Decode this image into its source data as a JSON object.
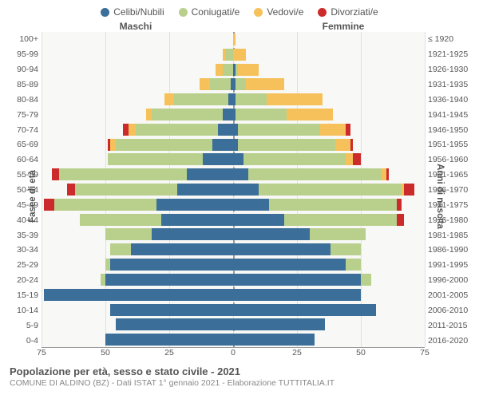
{
  "legend": {
    "items": [
      {
        "label": "Celibi/Nubili",
        "color": "#3b6e99"
      },
      {
        "label": "Coniugati/e",
        "color": "#b8d08c"
      },
      {
        "label": "Vedovi/e",
        "color": "#f6c15a"
      },
      {
        "label": "Divorziati/e",
        "color": "#cc2b2b"
      }
    ]
  },
  "headers": {
    "male": "Maschi",
    "female": "Femmine"
  },
  "axis_titles": {
    "left": "Fasce di età",
    "right": "Anni di nascita"
  },
  "chart": {
    "type": "population-pyramid",
    "background_color": "#f8f8f6",
    "grid_color": "#e0e0dc",
    "center_line_color": "#999",
    "colors": {
      "single": "#3b6e99",
      "married": "#b8d08c",
      "widowed": "#f6c15a",
      "divorced": "#cc2b2b"
    },
    "xmax": 75,
    "xticks": [
      -75,
      -50,
      -25,
      0,
      25,
      50,
      75
    ],
    "xtick_labels": [
      "75",
      "50",
      "25",
      "0",
      "25",
      "50",
      "75"
    ],
    "age_labels": [
      "100+",
      "95-99",
      "90-94",
      "85-89",
      "80-84",
      "75-79",
      "70-74",
      "65-69",
      "60-64",
      "55-59",
      "50-54",
      "45-49",
      "40-44",
      "35-39",
      "30-34",
      "25-29",
      "20-24",
      "15-19",
      "10-14",
      "5-9",
      "0-4"
    ],
    "year_labels": [
      "≤ 1920",
      "1921-1925",
      "1926-1930",
      "1931-1935",
      "1936-1940",
      "1941-1945",
      "1946-1950",
      "1951-1955",
      "1956-1960",
      "1961-1965",
      "1966-1970",
      "1971-1975",
      "1976-1980",
      "1981-1985",
      "1986-1990",
      "1991-1995",
      "1996-2000",
      "2001-2005",
      "2006-2010",
      "2011-2015",
      "2016-2020"
    ],
    "male": [
      {
        "single": 0,
        "married": 0,
        "widowed": 0,
        "divorced": 0
      },
      {
        "single": 0,
        "married": 3,
        "widowed": 1,
        "divorced": 0
      },
      {
        "single": 0,
        "married": 4,
        "widowed": 3,
        "divorced": 0
      },
      {
        "single": 1,
        "married": 8,
        "widowed": 4,
        "divorced": 0
      },
      {
        "single": 2,
        "married": 21,
        "widowed": 4,
        "divorced": 0
      },
      {
        "single": 4,
        "married": 28,
        "widowed": 2,
        "divorced": 0
      },
      {
        "single": 6,
        "married": 32,
        "widowed": 3,
        "divorced": 2
      },
      {
        "single": 8,
        "married": 38,
        "widowed": 2,
        "divorced": 1
      },
      {
        "single": 12,
        "married": 37,
        "widowed": 0,
        "divorced": 0
      },
      {
        "single": 18,
        "married": 50,
        "widowed": 0,
        "divorced": 3
      },
      {
        "single": 22,
        "married": 40,
        "widowed": 0,
        "divorced": 3
      },
      {
        "single": 30,
        "married": 40,
        "widowed": 0,
        "divorced": 4
      },
      {
        "single": 28,
        "married": 32,
        "widowed": 0,
        "divorced": 0
      },
      {
        "single": 32,
        "married": 18,
        "widowed": 0,
        "divorced": 0
      },
      {
        "single": 40,
        "married": 8,
        "widowed": 0,
        "divorced": 0
      },
      {
        "single": 48,
        "married": 2,
        "widowed": 0,
        "divorced": 0
      },
      {
        "single": 50,
        "married": 2,
        "widowed": 0,
        "divorced": 0
      },
      {
        "single": 74,
        "married": 0,
        "widowed": 0,
        "divorced": 0
      },
      {
        "single": 48,
        "married": 0,
        "widowed": 0,
        "divorced": 0
      },
      {
        "single": 46,
        "married": 0,
        "widowed": 0,
        "divorced": 0
      },
      {
        "single": 50,
        "married": 0,
        "widowed": 0,
        "divorced": 0
      }
    ],
    "female": [
      {
        "single": 0,
        "married": 0,
        "widowed": 1,
        "divorced": 0
      },
      {
        "single": 0,
        "married": 0,
        "widowed": 5,
        "divorced": 0
      },
      {
        "single": 1,
        "married": 1,
        "widowed": 8,
        "divorced": 0
      },
      {
        "single": 1,
        "married": 4,
        "widowed": 15,
        "divorced": 0
      },
      {
        "single": 1,
        "married": 12,
        "widowed": 22,
        "divorced": 0
      },
      {
        "single": 1,
        "married": 20,
        "widowed": 18,
        "divorced": 0
      },
      {
        "single": 2,
        "married": 32,
        "widowed": 10,
        "divorced": 2
      },
      {
        "single": 2,
        "married": 38,
        "widowed": 6,
        "divorced": 1
      },
      {
        "single": 4,
        "married": 40,
        "widowed": 3,
        "divorced": 3
      },
      {
        "single": 6,
        "married": 52,
        "widowed": 2,
        "divorced": 1
      },
      {
        "single": 10,
        "married": 56,
        "widowed": 1,
        "divorced": 4
      },
      {
        "single": 14,
        "married": 50,
        "widowed": 0,
        "divorced": 2
      },
      {
        "single": 20,
        "married": 44,
        "widowed": 0,
        "divorced": 3
      },
      {
        "single": 30,
        "married": 22,
        "widowed": 0,
        "divorced": 0
      },
      {
        "single": 38,
        "married": 12,
        "widowed": 0,
        "divorced": 0
      },
      {
        "single": 44,
        "married": 6,
        "widowed": 0,
        "divorced": 0
      },
      {
        "single": 50,
        "married": 4,
        "widowed": 0,
        "divorced": 0
      },
      {
        "single": 50,
        "married": 0,
        "widowed": 0,
        "divorced": 0
      },
      {
        "single": 56,
        "married": 0,
        "widowed": 0,
        "divorced": 0
      },
      {
        "single": 36,
        "married": 0,
        "widowed": 0,
        "divorced": 0
      },
      {
        "single": 32,
        "married": 0,
        "widowed": 0,
        "divorced": 0
      }
    ]
  },
  "footer": {
    "title": "Popolazione per età, sesso e stato civile - 2021",
    "subtitle": "COMUNE DI ALDINO (BZ) - Dati ISTAT 1° gennaio 2021 - Elaborazione TUTTITALIA.IT"
  }
}
